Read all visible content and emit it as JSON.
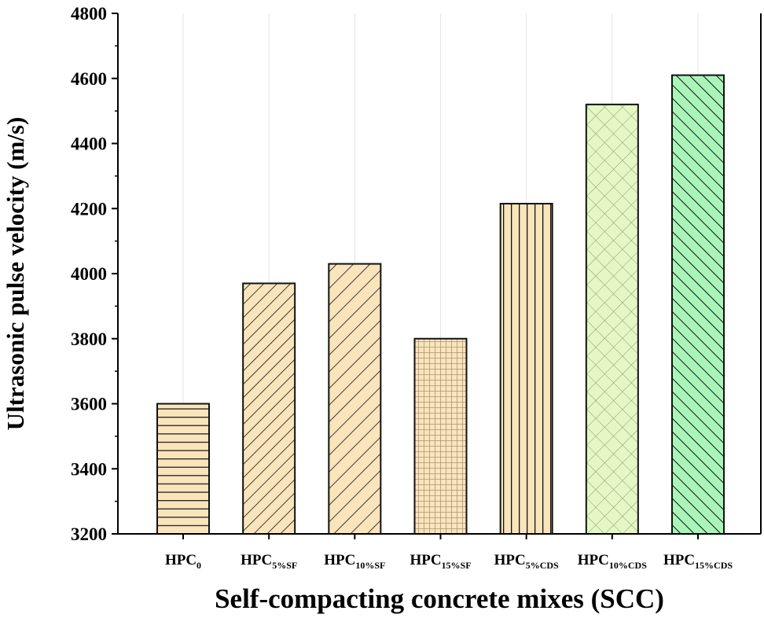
{
  "chart_data": {
    "type": "bar",
    "title": "",
    "xlabel": "Self-compacting concrete mixes (SCC)",
    "ylabel": "Ultrasonic pulse velocity (m/s)",
    "ylim": [
      3200,
      4800
    ],
    "yticks": [
      3200,
      3400,
      3600,
      3800,
      4000,
      4200,
      4400,
      4600,
      4800
    ],
    "grid": "vertical at categories, light gray",
    "categories": [
      {
        "base": "HPC",
        "sub": "0"
      },
      {
        "base": "HPC",
        "sub": "5%SF"
      },
      {
        "base": "HPC",
        "sub": "10%SF"
      },
      {
        "base": "HPC",
        "sub": "15%SF"
      },
      {
        "base": "HPC",
        "sub": "5%CDS"
      },
      {
        "base": "HPC",
        "sub": "10%CDS"
      },
      {
        "base": "HPC",
        "sub": "15%CDS"
      }
    ],
    "values": [
      3600,
      3970,
      4030,
      3800,
      4215,
      4520,
      4610
    ],
    "bar_fills": [
      "#F9E4BC",
      "#F9E4BC",
      "#F9E4BC",
      "#F9E4BC",
      "#F9E4BC",
      "#E4F7C4",
      "#A9F5B9"
    ],
    "bar_patterns": [
      "horizontal",
      "diagonal-up",
      "diagonal-up-wide",
      "grid",
      "vertical",
      "crosshatch",
      "diagonal-down"
    ]
  }
}
